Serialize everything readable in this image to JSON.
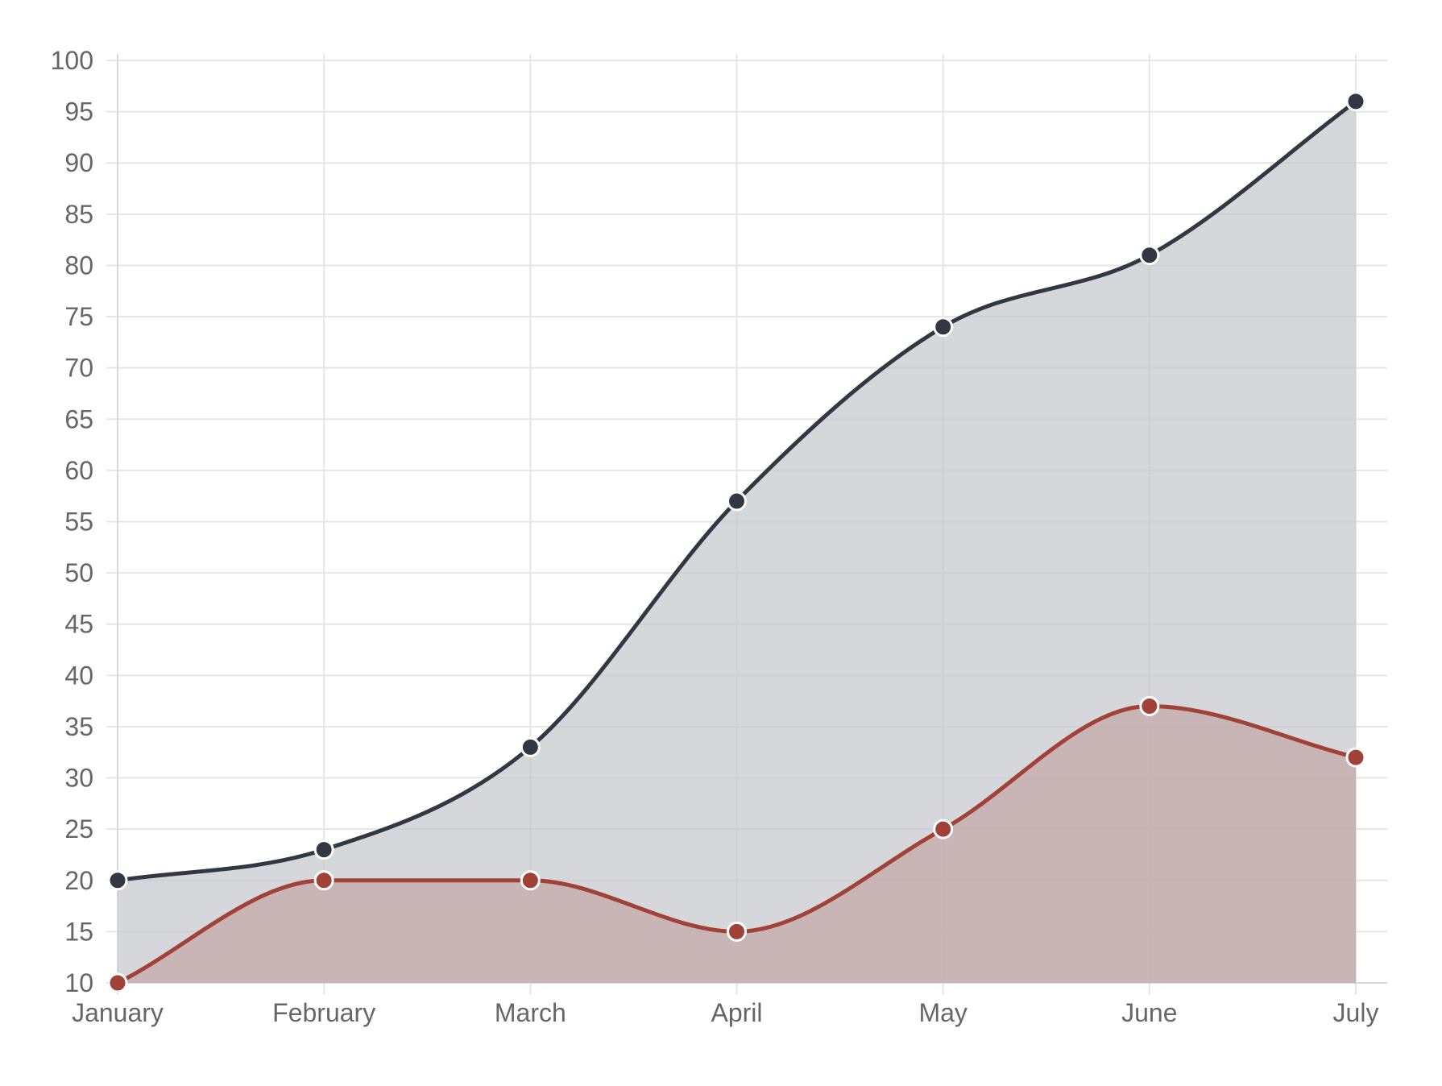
{
  "chart_data": {
    "type": "area",
    "categories": [
      "January",
      "February",
      "March",
      "April",
      "May",
      "June",
      "July"
    ],
    "series": [
      {
        "values": [
          20,
          23,
          33,
          57,
          74,
          81,
          96
        ],
        "line_color": "#323843",
        "fill_color": "#c4c6ca"
      },
      {
        "values": [
          10,
          20,
          20,
          15,
          25,
          37,
          32
        ],
        "line_color": "#a04238",
        "fill_color": "#c5a6a6"
      }
    ],
    "y_ticks": [
      "100",
      "95",
      "90",
      "85",
      "80",
      "75",
      "70",
      "65",
      "60",
      "55",
      "50",
      "45",
      "40",
      "35",
      "30",
      "25",
      "20",
      "15",
      "10"
    ],
    "ylim": [
      10,
      100
    ],
    "grid": true,
    "smooth": true
  }
}
